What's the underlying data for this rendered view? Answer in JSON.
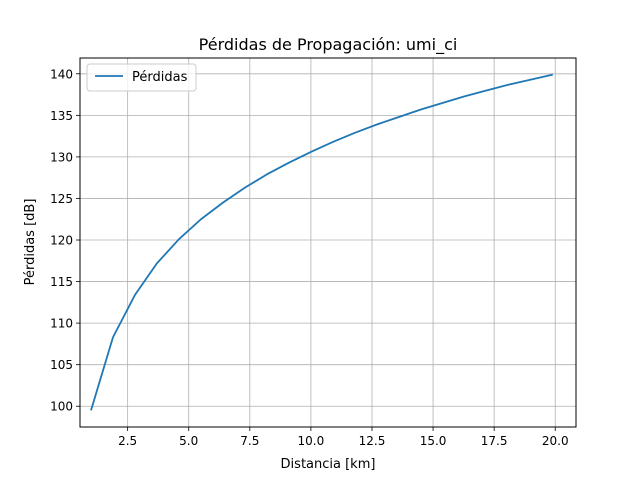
{
  "chart_data": {
    "type": "line",
    "title": "Pérdidas de Propagación: umi_ci",
    "xlabel": "Distancia [km]",
    "ylabel": "Pérdidas [dB]",
    "xlim": [
      0.55,
      20.85
    ],
    "ylim": [
      97.5,
      141.9
    ],
    "xticks": [
      2.5,
      5.0,
      7.5,
      10.0,
      12.5,
      15.0,
      17.5,
      20.0
    ],
    "xtick_labels": [
      "2.5",
      "5.0",
      "7.5",
      "10.0",
      "12.5",
      "15.0",
      "17.5",
      "20.0"
    ],
    "yticks": [
      100,
      105,
      110,
      115,
      120,
      125,
      130,
      135,
      140
    ],
    "ytick_labels": [
      "100",
      "105",
      "110",
      "115",
      "120",
      "125",
      "130",
      "135",
      "140"
    ],
    "grid": true,
    "legend_position": "top-left",
    "series": [
      {
        "name": "Pérdidas",
        "color": "#1f77b4",
        "x": [
          1.0,
          1.9,
          2.8,
          3.7,
          4.6,
          5.5,
          6.4,
          7.3,
          8.2,
          9.1,
          10.0,
          10.9,
          11.8,
          12.7,
          13.6,
          14.5,
          15.4,
          16.3,
          17.2,
          18.1,
          19.0,
          19.9
        ],
        "y": [
          99.5,
          108.3,
          113.4,
          117.2,
          120.1,
          122.5,
          124.5,
          126.3,
          127.9,
          129.3,
          130.6,
          131.8,
          132.9,
          133.9,
          134.8,
          135.7,
          136.5,
          137.3,
          138.0,
          138.7,
          139.3,
          139.9
        ]
      }
    ]
  }
}
